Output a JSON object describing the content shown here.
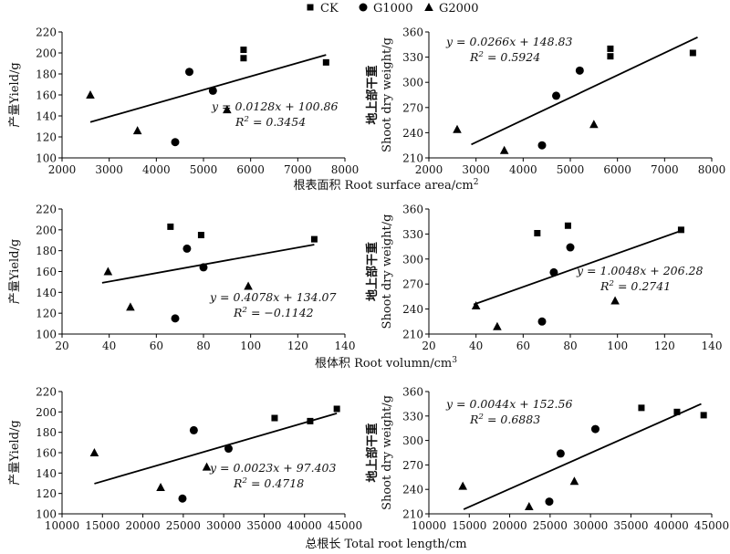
{
  "legend": {
    "position": "top-center",
    "items": [
      {
        "label": "CK",
        "marker": "square"
      },
      {
        "label": "G1000",
        "marker": "circle"
      },
      {
        "label": "G2000",
        "marker": "triangle"
      }
    ]
  },
  "chart_data": [
    {
      "type": "scatter",
      "ylabel": "产量Yield/g",
      "xlabel": "根表面积 Root surface area/cm2",
      "xlim": [
        2000,
        8000
      ],
      "ylim": [
        100,
        220
      ],
      "xticks": [
        2000,
        3000,
        4000,
        5000,
        6000,
        7000,
        8000
      ],
      "yticks": [
        100,
        120,
        140,
        160,
        180,
        200,
        220
      ],
      "series": [
        {
          "name": "CK",
          "marker": "square",
          "points": [
            [
              5850,
              203
            ],
            [
              5850,
              195
            ],
            [
              7600,
              191
            ]
          ]
        },
        {
          "name": "G1000",
          "marker": "circle",
          "points": [
            [
              4700,
              182
            ],
            [
              5200,
              164
            ],
            [
              4400,
              115
            ]
          ]
        },
        {
          "name": "G2000",
          "marker": "triangle",
          "points": [
            [
              2600,
              160
            ],
            [
              3600,
              126
            ],
            [
              5500,
              146
            ]
          ]
        }
      ],
      "fit": {
        "slope": 0.0128,
        "intercept": 100.86,
        "x": [
          2600,
          7600
        ]
      },
      "equation": [
        "y = 0.0128x + 100.86",
        "R² = 0.3454"
      ]
    },
    {
      "type": "scatter",
      "ylabel": "地上部干重 Shoot dry weight/g",
      "xlim": [
        2000,
        8000
      ],
      "ylim": [
        210,
        360
      ],
      "xticks": [
        2000,
        3000,
        4000,
        5000,
        6000,
        7000,
        8000
      ],
      "yticks": [
        210,
        240,
        270,
        300,
        330,
        360
      ],
      "series": [
        {
          "name": "CK",
          "marker": "square",
          "points": [
            [
              5850,
              340
            ],
            [
              5850,
              331
            ],
            [
              7600,
              335
            ]
          ]
        },
        {
          "name": "G1000",
          "marker": "circle",
          "points": [
            [
              4700,
              284
            ],
            [
              5200,
              314
            ],
            [
              4400,
              225
            ]
          ]
        },
        {
          "name": "G2000",
          "marker": "triangle",
          "points": [
            [
              2600,
              244
            ],
            [
              3600,
              219
            ],
            [
              5500,
              250
            ]
          ]
        }
      ],
      "fit": {
        "slope": 0.0266,
        "intercept": 148.83,
        "x": [
          2900,
          7700
        ]
      },
      "equation": [
        "y = 0.0266x + 148.83",
        "R² = 0.5924"
      ]
    },
    {
      "type": "scatter",
      "ylabel": "产量Yield/g",
      "xlabel": "根体积 Root volumn/cm3",
      "xlim": [
        20,
        140
      ],
      "ylim": [
        100,
        220
      ],
      "xticks": [
        20,
        40,
        60,
        80,
        100,
        120,
        140
      ],
      "yticks": [
        100,
        120,
        140,
        160,
        180,
        200,
        220
      ],
      "series": [
        {
          "name": "CK",
          "marker": "square",
          "points": [
            [
              66,
              203
            ],
            [
              79,
              195
            ],
            [
              127,
              191
            ]
          ]
        },
        {
          "name": "G1000",
          "marker": "circle",
          "points": [
            [
              73,
              182
            ],
            [
              80,
              164
            ],
            [
              68,
              115
            ]
          ]
        },
        {
          "name": "G2000",
          "marker": "triangle",
          "points": [
            [
              39.5,
              160
            ],
            [
              49,
              126
            ],
            [
              99,
              146
            ]
          ]
        }
      ],
      "fit": {
        "slope": 0.4078,
        "intercept": 134.07,
        "x": [
          37,
          127
        ]
      },
      "equation": [
        "y = 0.4078x + 134.07",
        "R² = −0.1142"
      ]
    },
    {
      "type": "scatter",
      "ylabel": "地上部干重 Shoot dry weight/g",
      "xlim": [
        20,
        140
      ],
      "ylim": [
        210,
        360
      ],
      "xticks": [
        20,
        40,
        60,
        80,
        100,
        120,
        140
      ],
      "yticks": [
        210,
        240,
        270,
        300,
        330,
        360
      ],
      "series": [
        {
          "name": "CK",
          "marker": "square",
          "points": [
            [
              66,
              331
            ],
            [
              79,
              340
            ],
            [
              127,
              335
            ]
          ]
        },
        {
          "name": "G1000",
          "marker": "circle",
          "points": [
            [
              73,
              284
            ],
            [
              80,
              314
            ],
            [
              68,
              225
            ]
          ]
        },
        {
          "name": "G2000",
          "marker": "triangle",
          "points": [
            [
              40,
              244
            ],
            [
              49,
              219
            ],
            [
              99,
              250
            ]
          ]
        }
      ],
      "fit": {
        "slope": 1.0048,
        "intercept": 206.28,
        "x": [
          39,
          127
        ]
      },
      "equation": [
        "y = 1.0048x + 206.28",
        "R² = 0.2741"
      ]
    },
    {
      "type": "scatter",
      "ylabel": "产量Yield/g",
      "xlabel": "总根长 Total root length/cm",
      "xlim": [
        10000,
        45000
      ],
      "ylim": [
        100,
        220
      ],
      "xticks": [
        10000,
        15000,
        20000,
        25000,
        30000,
        35000,
        40000,
        45000
      ],
      "yticks": [
        100,
        120,
        140,
        160,
        180,
        200,
        220
      ],
      "series": [
        {
          "name": "CK",
          "marker": "square",
          "points": [
            [
              36300,
              194
            ],
            [
              40700,
              191
            ],
            [
              44000,
              203
            ]
          ]
        },
        {
          "name": "G1000",
          "marker": "circle",
          "points": [
            [
              26300,
              182
            ],
            [
              30600,
              164
            ],
            [
              24900,
              115
            ]
          ]
        },
        {
          "name": "G2000",
          "marker": "triangle",
          "points": [
            [
              14000,
              160
            ],
            [
              22200,
              126
            ],
            [
              27900,
              146
            ]
          ]
        }
      ],
      "fit": {
        "slope": 0.0023,
        "intercept": 97.403,
        "x": [
          14000,
          44000
        ]
      },
      "equation": [
        "y = 0.0023x + 97.403",
        "R² = 0.4718"
      ]
    },
    {
      "type": "scatter",
      "ylabel": "地上部干重 Shoot dry weight/g",
      "xlim": [
        10000,
        45000
      ],
      "ylim": [
        210,
        360
      ],
      "xticks": [
        10000,
        15000,
        20000,
        25000,
        30000,
        35000,
        40000,
        45000
      ],
      "yticks": [
        210,
        240,
        270,
        300,
        330,
        360
      ],
      "series": [
        {
          "name": "CK",
          "marker": "square",
          "points": [
            [
              36300,
              340
            ],
            [
              40700,
              335
            ],
            [
              44000,
              331
            ]
          ]
        },
        {
          "name": "G1000",
          "marker": "circle",
          "points": [
            [
              26300,
              284
            ],
            [
              30600,
              314
            ],
            [
              24900,
              225
            ]
          ]
        },
        {
          "name": "G2000",
          "marker": "triangle",
          "points": [
            [
              14200,
              244
            ],
            [
              22400,
              219
            ],
            [
              28000,
              250
            ]
          ]
        }
      ],
      "fit": {
        "slope": 0.0044,
        "intercept": 152.56,
        "x": [
          14300,
          43700
        ]
      },
      "equation": [
        "y = 0.0044x + 152.56",
        "R² = 0.6883"
      ]
    }
  ]
}
